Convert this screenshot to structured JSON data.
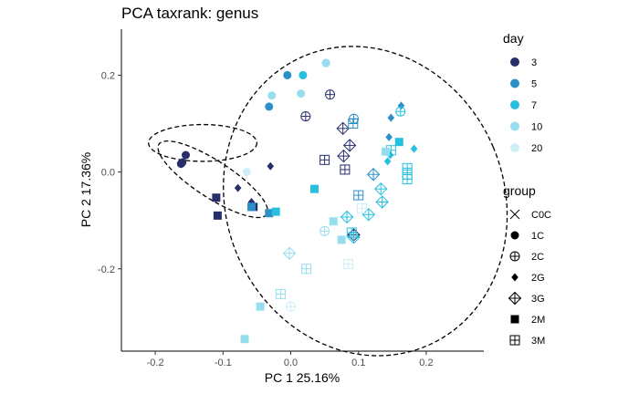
{
  "chart_data": {
    "type": "scatter",
    "title": "PCA taxrank: genus",
    "xlabel": "PC 1 25.16%",
    "ylabel": "PC 2 17.36%",
    "xlim": [
      -0.25,
      0.285
    ],
    "ylim": [
      -0.37,
      0.295
    ],
    "x_ticks": [
      -0.2,
      -0.1,
      0.0,
      0.1,
      0.2
    ],
    "x_tick_labels": [
      "-0.2",
      "-0.1",
      "0.0",
      "0.1",
      "0.2"
    ],
    "y_ticks": [
      -0.2,
      0.0,
      0.2
    ],
    "y_tick_labels": [
      "-0.2",
      "0.0",
      "0.2"
    ],
    "grid": false,
    "legend_position": "right",
    "day_legend": {
      "title": "day",
      "items": [
        {
          "label": "3",
          "color": "#272E6A"
        },
        {
          "label": "5",
          "color": "#2C8FC7"
        },
        {
          "label": "7",
          "color": "#25BFE0"
        },
        {
          "label": "10",
          "color": "#96DEEE"
        },
        {
          "label": "20",
          "color": "#CEEFF6"
        }
      ]
    },
    "group_legend": {
      "title": "group",
      "items": [
        {
          "label": "C0C",
          "shape": "x"
        },
        {
          "label": "1C",
          "shape": "circle"
        },
        {
          "label": "2C",
          "shape": "circleplus"
        },
        {
          "label": "2G",
          "shape": "diamond"
        },
        {
          "label": "3G",
          "shape": "diamondplus"
        },
        {
          "label": "2M",
          "shape": "square"
        },
        {
          "label": "3M",
          "shape": "squareplus"
        }
      ]
    },
    "ellipses": [
      {
        "cx": 0.11,
        "cy": -0.06,
        "rx": 0.205,
        "ry": 0.325,
        "angle": 23
      },
      {
        "cx": -0.13,
        "cy": 0.06,
        "rx": 0.08,
        "ry": 0.038,
        "angle": 0
      },
      {
        "cx": -0.115,
        "cy": -0.015,
        "rx": 0.095,
        "ry": 0.038,
        "angle": -33
      }
    ],
    "points": [
      {
        "x": -0.155,
        "y": 0.035,
        "day": "3",
        "group": "1C"
      },
      {
        "x": -0.16,
        "y": 0.02,
        "day": "3",
        "group": "1C"
      },
      {
        "x": -0.162,
        "y": 0.017,
        "day": "3",
        "group": "1C"
      },
      {
        "x": -0.03,
        "y": 0.012,
        "day": "3",
        "group": "2G"
      },
      {
        "x": -0.078,
        "y": -0.033,
        "day": "3",
        "group": "2G"
      },
      {
        "x": -0.058,
        "y": -0.062,
        "day": "3",
        "group": "2G"
      },
      {
        "x": -0.11,
        "y": -0.053,
        "day": "3",
        "group": "2M"
      },
      {
        "x": -0.108,
        "y": -0.09,
        "day": "3",
        "group": "2M"
      },
      {
        "x": -0.055,
        "y": -0.072,
        "day": "3",
        "group": "2M"
      },
      {
        "x": 0.058,
        "y": 0.16,
        "day": "3",
        "group": "2C"
      },
      {
        "x": 0.022,
        "y": 0.115,
        "day": "3",
        "group": "2C"
      },
      {
        "x": 0.077,
        "y": 0.09,
        "day": "3",
        "group": "3G"
      },
      {
        "x": 0.087,
        "y": 0.055,
        "day": "3",
        "group": "3G"
      },
      {
        "x": 0.078,
        "y": 0.033,
        "day": "3",
        "group": "3G"
      },
      {
        "x": 0.05,
        "y": 0.025,
        "day": "3",
        "group": "3M"
      },
      {
        "x": 0.08,
        "y": 0.005,
        "day": "3",
        "group": "3M"
      },
      {
        "x": 0.093,
        "y": -0.13,
        "day": "3",
        "group": "3G"
      },
      {
        "x": -0.005,
        "y": 0.2,
        "day": "5",
        "group": "1C"
      },
      {
        "x": -0.032,
        "y": 0.135,
        "day": "5",
        "group": "1C"
      },
      {
        "x": 0.093,
        "y": 0.11,
        "day": "5",
        "group": "2C"
      },
      {
        "x": 0.148,
        "y": 0.112,
        "day": "5",
        "group": "2G"
      },
      {
        "x": 0.163,
        "y": 0.137,
        "day": "5",
        "group": "2G"
      },
      {
        "x": 0.145,
        "y": 0.072,
        "day": "5",
        "group": "2G"
      },
      {
        "x": 0.092,
        "y": 0.1,
        "day": "5",
        "group": "3M"
      },
      {
        "x": 0.122,
        "y": -0.005,
        "day": "5",
        "group": "3G"
      },
      {
        "x": 0.1,
        "y": -0.048,
        "day": "5",
        "group": "3M"
      },
      {
        "x": -0.058,
        "y": -0.072,
        "day": "5",
        "group": "2M"
      },
      {
        "x": -0.032,
        "y": -0.085,
        "day": "5",
        "group": "2M"
      },
      {
        "x": 0.018,
        "y": 0.2,
        "day": "7",
        "group": "1C"
      },
      {
        "x": 0.052,
        "y": 0.225,
        "day": "7",
        "group": "1C"
      },
      {
        "x": 0.182,
        "y": 0.048,
        "day": "7",
        "group": "2G"
      },
      {
        "x": 0.147,
        "y": 0.035,
        "day": "7",
        "group": "2G"
      },
      {
        "x": 0.143,
        "y": 0.022,
        "day": "7",
        "group": "2G"
      },
      {
        "x": 0.162,
        "y": 0.125,
        "day": "7",
        "group": "2C"
      },
      {
        "x": 0.16,
        "y": 0.062,
        "day": "7",
        "group": "2M"
      },
      {
        "x": 0.035,
        "y": -0.035,
        "day": "7",
        "group": "2M"
      },
      {
        "x": -0.022,
        "y": -0.082,
        "day": "7",
        "group": "2M"
      },
      {
        "x": 0.148,
        "y": 0.045,
        "day": "7",
        "group": "3M"
      },
      {
        "x": 0.172,
        "y": 0.008,
        "day": "7",
        "group": "3M"
      },
      {
        "x": 0.172,
        "y": -0.005,
        "day": "7",
        "group": "3M"
      },
      {
        "x": 0.172,
        "y": -0.015,
        "day": "7",
        "group": "3M"
      },
      {
        "x": 0.133,
        "y": -0.035,
        "day": "7",
        "group": "3G"
      },
      {
        "x": 0.135,
        "y": -0.062,
        "day": "7",
        "group": "3G"
      },
      {
        "x": 0.115,
        "y": -0.088,
        "day": "7",
        "group": "3G"
      },
      {
        "x": 0.083,
        "y": -0.093,
        "day": "7",
        "group": "3G"
      },
      {
        "x": 0.093,
        "y": -0.135,
        "day": "7",
        "group": "3G"
      },
      {
        "x": 0.09,
        "y": -0.125,
        "day": "7",
        "group": "3M"
      },
      {
        "x": 0.015,
        "y": 0.162,
        "day": "10",
        "group": "1C"
      },
      {
        "x": -0.028,
        "y": 0.158,
        "day": "10",
        "group": "1C"
      },
      {
        "x": 0.052,
        "y": 0.225,
        "day": "10",
        "group": "1C"
      },
      {
        "x": 0.14,
        "y": 0.042,
        "day": "10",
        "group": "2M"
      },
      {
        "x": 0.075,
        "y": -0.14,
        "day": "10",
        "group": "2M"
      },
      {
        "x": 0.063,
        "y": -0.102,
        "day": "10",
        "group": "2M"
      },
      {
        "x": 0.05,
        "y": -0.122,
        "day": "10",
        "group": "2C"
      },
      {
        "x": -0.002,
        "y": -0.168,
        "day": "10",
        "group": "3G"
      },
      {
        "x": 0.023,
        "y": -0.2,
        "day": "10",
        "group": "3M"
      },
      {
        "x": -0.015,
        "y": -0.252,
        "day": "10",
        "group": "3M"
      },
      {
        "x": -0.045,
        "y": -0.278,
        "day": "10",
        "group": "2M"
      },
      {
        "x": -0.068,
        "y": -0.345,
        "day": "10",
        "group": "2M"
      },
      {
        "x": 0.085,
        "y": -0.19,
        "day": "20",
        "group": "3M"
      },
      {
        "x": 0.0,
        "y": -0.278,
        "day": "20",
        "group": "2C"
      },
      {
        "x": -0.065,
        "y": 0.0,
        "day": "20",
        "group": "1C"
      },
      {
        "x": 0.105,
        "y": -0.075,
        "day": "20",
        "group": "3M"
      }
    ]
  }
}
